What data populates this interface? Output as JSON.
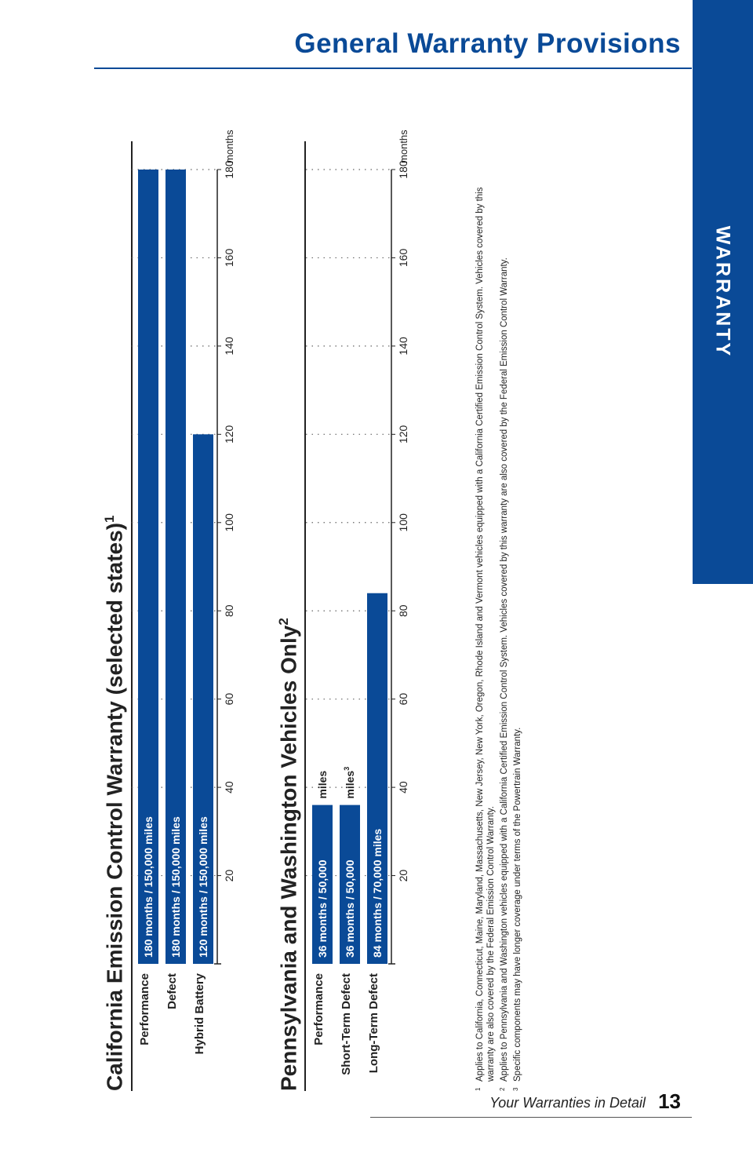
{
  "header": {
    "title": "General Warranty Provisions"
  },
  "side_tab": {
    "label": "WARRANTY"
  },
  "chart_data": [
    {
      "type": "bar",
      "title": "California Emission Control Warranty (selected states)",
      "title_note": "1",
      "unit": "months",
      "xlim": [
        0,
        180
      ],
      "ticks": [
        "20",
        "40",
        "60",
        "80",
        "100",
        "120",
        "140",
        "160",
        "180"
      ],
      "categories": [
        "Performance",
        "Defect",
        "Hybrid Battery"
      ],
      "values": [
        180,
        180,
        120
      ],
      "bar_labels": [
        "180 months  /  150,000 miles",
        "180 months  /  150,000 miles",
        "120 months  /  150,000 miles"
      ],
      "outside_labels": [
        "",
        "",
        ""
      ],
      "outside_notes": [
        "",
        "",
        ""
      ],
      "color": "#0a4a97"
    },
    {
      "type": "bar",
      "title": "Pennsylvania and Washington Vehicles Only",
      "title_note": "2",
      "unit": "months",
      "xlim": [
        0,
        180
      ],
      "ticks": [
        "20",
        "40",
        "60",
        "80",
        "100",
        "120",
        "140",
        "160",
        "180"
      ],
      "categories": [
        "Performance",
        "Short-Term Defect",
        "Long-Term Defect"
      ],
      "values": [
        36,
        36,
        84
      ],
      "bar_labels": [
        "36 months  /  50,000",
        "36 months  /  50,000",
        "84 months  /  70,000 miles"
      ],
      "outside_labels": [
        "miles",
        "miles",
        ""
      ],
      "outside_notes": [
        "",
        "3",
        ""
      ],
      "color": "#0a4a97"
    }
  ],
  "footnotes": [
    {
      "num": "1",
      "text": "Applies to California, Connecticut, Maine, Maryland, Massachusetts, New Jersey, New York, Oregon, Rhode Island and Vermont vehicles equipped with a California Certified Emission Control System. Vehicles covered by this warranty are also covered by the Federal Emission Control Warranty."
    },
    {
      "num": "2",
      "text": "Applies to Pennsylvania and Washington vehicles equipped with a California Certified Emission Control System. Vehicles covered by this warranty are also covered by the Federal Emission Control Warranty."
    },
    {
      "num": "3",
      "text": "Specific components may have longer coverage under terms of the Powertrain Warranty."
    }
  ],
  "footer": {
    "text": "Your Warranties in Detail",
    "page": "13"
  }
}
